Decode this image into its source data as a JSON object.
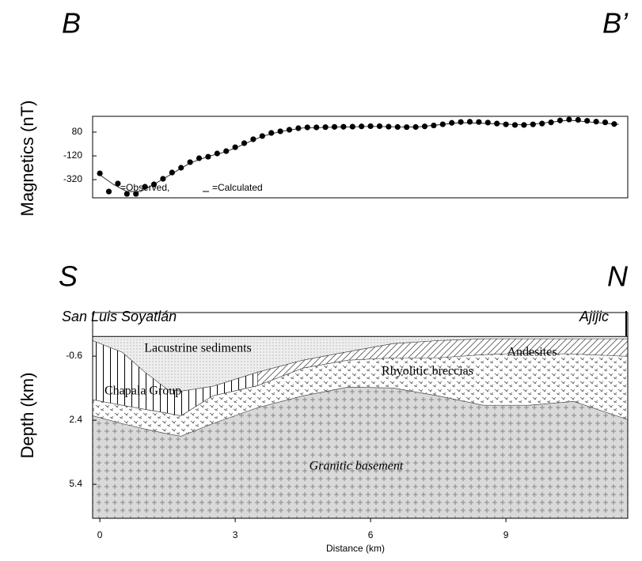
{
  "chart_data": [
    {
      "type": "scatter",
      "title": "B",
      "title_right": "B’",
      "y_label": "Magnetics (nT)",
      "xlim": [
        -0.16,
        11.7
      ],
      "ylim": [
        -473,
        213
      ],
      "yticks": [
        80,
        -120,
        -320
      ],
      "series": [
        {
          "name": "=Observed,",
          "color": "#000000",
          "marker": "dot",
          "x": [
            0,
            0.2,
            0.4,
            0.6,
            0.8,
            1.0,
            1.2,
            1.4,
            1.6,
            1.8,
            2.0,
            2.2,
            2.4,
            2.6,
            2.8,
            3.0,
            3.2,
            3.4,
            3.6,
            3.8,
            4.0,
            4.2,
            4.4,
            4.6,
            4.8,
            5.0,
            5.2,
            5.4,
            5.6,
            5.8,
            6.0,
            6.2,
            6.4,
            6.6,
            6.8,
            7.0,
            7.2,
            7.4,
            7.6,
            7.8,
            8.0,
            8.2,
            8.4,
            8.6,
            8.8,
            9.0,
            9.2,
            9.4,
            9.6,
            9.8,
            10.0,
            10.2,
            10.4,
            10.6,
            10.8,
            11.0,
            11.2,
            11.4
          ],
          "values": [
            -267,
            -420,
            -353,
            -440,
            -440,
            -380,
            -360,
            -313,
            -260,
            -220,
            -173,
            -140,
            -127,
            -100,
            -80,
            -47,
            -13,
            20,
            47,
            73,
            87,
            100,
            113,
            120,
            120,
            122,
            124,
            125,
            126,
            128,
            130,
            130,
            126,
            123,
            122,
            123,
            128,
            136,
            146,
            158,
            165,
            167,
            165,
            160,
            152,
            145,
            140,
            140,
            145,
            152,
            162,
            178,
            186,
            183,
            175,
            168,
            162,
            148
          ]
        },
        {
          "name": "=Calculated",
          "color": "#000000",
          "marker": "line",
          "x": [
            0,
            0.3,
            0.6,
            0.9,
            1.2,
            1.6,
            2.0,
            2.4,
            2.8,
            3.2,
            3.6,
            4.0,
            4.5,
            5,
            6,
            7,
            8,
            8.8,
            9.4,
            10.4,
            11.5
          ],
          "values": [
            -280,
            -360,
            -420,
            -420,
            -360,
            -270,
            -180,
            -125,
            -85,
            -20,
            45,
            85,
            115,
            120,
            128,
            122,
            160,
            150,
            140,
            180,
            145
          ]
        }
      ]
    },
    {
      "type": "cross-section",
      "title": "S",
      "title_right": "N",
      "place_left": "San Luis Soyatlán",
      "place_right": "Ajijic",
      "y_label": "Depth (km)",
      "x_label": "Distance (km)",
      "xlim": [
        -0.16,
        11.7
      ],
      "ylim": [
        -2.64,
        6.99
      ],
      "y_inverted": true,
      "surface": -1.52,
      "xticks": [
        0,
        3,
        6,
        9
      ],
      "yticks": [
        -0.6,
        2.4,
        5.4
      ],
      "x": [
        -0.16,
        0.5,
        1,
        1.5,
        1.8,
        2.5,
        3.5,
        4.5,
        5.5,
        6.5,
        7.5,
        8.5,
        9.5,
        10.5,
        11.7
      ],
      "layers": [
        {
          "label": "Granitic basement",
          "pattern": "granite",
          "from": 0,
          "to": 14,
          "top": [
            2.19,
            2.56,
            2.81,
            3.04,
            3.15,
            2.56,
            1.81,
            1.26,
            0.85,
            0.89,
            1.26,
            1.7,
            1.7,
            1.52,
            2.37
          ]
        },
        {
          "label": "Rhyolitic breccias",
          "pattern": "breccia",
          "from": 0,
          "to": 14,
          "top": [
            1.44,
            1.7,
            1.89,
            2.07,
            2.19,
            1.26,
            0.78,
            -0.04,
            -0.41,
            -0.52,
            -0.52,
            -0.67,
            -0.74,
            -0.7,
            -0.59
          ],
          "bottom": [
            2.19,
            2.56,
            2.81,
            3.04,
            3.15,
            2.56,
            1.81,
            1.26,
            0.85,
            0.89,
            1.26,
            1.7,
            1.7,
            1.52,
            2.37
          ]
        },
        {
          "label": "Chapala Group",
          "pattern": "vertical",
          "from": 0,
          "to": 6,
          "top": [
            -1.33,
            -0.78,
            0.15,
            0.96,
            1.04,
            0.81,
            0.15
          ],
          "bottom": [
            1.44,
            1.7,
            1.89,
            2.07,
            2.19,
            1.26,
            0.78
          ]
        },
        {
          "label": "Andesites",
          "pattern": "diagonal",
          "from": 6,
          "to": 14,
          "top": [
            0.15,
            -0.41,
            -0.81,
            -1.19,
            -1.33,
            -1.41,
            -1.41,
            -1.41,
            -1.41
          ],
          "bottom": [
            0.78,
            -0.04,
            -0.41,
            -0.52,
            -0.52,
            -0.67,
            -0.74,
            -0.7,
            -0.59
          ]
        },
        {
          "label": "Lacustrine sediments",
          "pattern": "stipple",
          "from": 0,
          "to": 14,
          "bottom": [
            -1.33,
            -0.78,
            0.15,
            0.96,
            1.04,
            0.81,
            0.15,
            -0.41,
            -0.81,
            -1.19,
            -1.33,
            -1.41,
            -1.41,
            -1.41,
            -1.41
          ]
        }
      ]
    }
  ]
}
